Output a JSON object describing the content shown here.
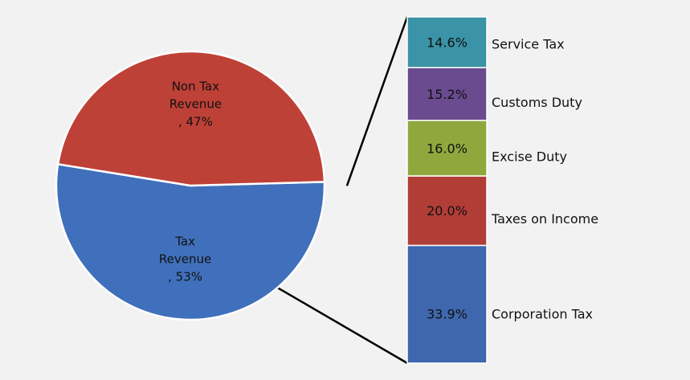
{
  "chart_data": {
    "type": "pie",
    "subtype": "pie-of-bar",
    "title": "",
    "pie": {
      "slices": [
        {
          "label_lines": [
            "Tax",
            "Revenue",
            ", 53%"
          ],
          "value": 53,
          "color": "#4070BC"
        },
        {
          "label_lines": [
            "Non Tax",
            "Revenue",
            ", 47%"
          ],
          "value": 47,
          "color": "#BE4138"
        }
      ]
    },
    "breakdown": {
      "of_slice": "Tax Revenue",
      "segments": [
        {
          "name": "Corporation Tax",
          "value": 33.9,
          "label": "33.9%",
          "color": "#3E67AE"
        },
        {
          "name": "Taxes on Income",
          "value": 20.0,
          "label": "20.0%",
          "color": "#B13E36"
        },
        {
          "name": "Excise Duty",
          "value": 16.0,
          "label": "16.0%",
          "color": "#8FA83E"
        },
        {
          "name": "Customs Duty",
          "value": 15.2,
          "label": "15.2%",
          "color": "#6A4B8F"
        },
        {
          "name": "Service Tax",
          "value": 14.6,
          "label": "14.6%",
          "color": "#3A93A6"
        }
      ]
    }
  }
}
